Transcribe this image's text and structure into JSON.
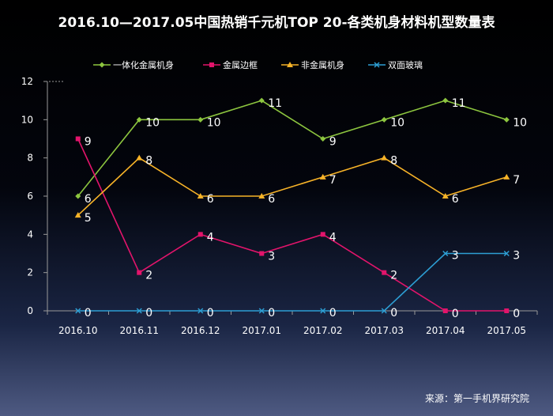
{
  "title": "2016.10—2017.05中国热销千元机TOP 20-各类机身材料机型数量表",
  "source": "来源：第一手机界研究院",
  "chart_data": {
    "type": "line",
    "categories": [
      "2016.10",
      "2016.11",
      "2016.12",
      "2017.01",
      "2017.02",
      "2017.03",
      "2017.04",
      "2017.05"
    ],
    "ylim": [
      0,
      12
    ],
    "yticks": [
      0,
      2,
      4,
      6,
      8,
      10,
      12
    ],
    "grid": false,
    "legend_position": "top",
    "series": [
      {
        "name": "一体化金属机身",
        "color": "#8dc63f",
        "marker": "diamond",
        "values": [
          6,
          10,
          10,
          11,
          9,
          10,
          11,
          10
        ]
      },
      {
        "name": "金属边框",
        "color": "#e2146b",
        "marker": "square",
        "values": [
          9,
          2,
          4,
          3,
          4,
          2,
          0,
          0
        ]
      },
      {
        "name": "非金属机身",
        "color": "#f7b328",
        "marker": "triangle",
        "values": [
          5,
          8,
          6,
          6,
          7,
          8,
          6,
          7
        ]
      },
      {
        "name": "双面玻璃",
        "color": "#2d9ed3",
        "marker": "x",
        "values": [
          0,
          0,
          0,
          0,
          0,
          0,
          3,
          3
        ]
      }
    ]
  }
}
